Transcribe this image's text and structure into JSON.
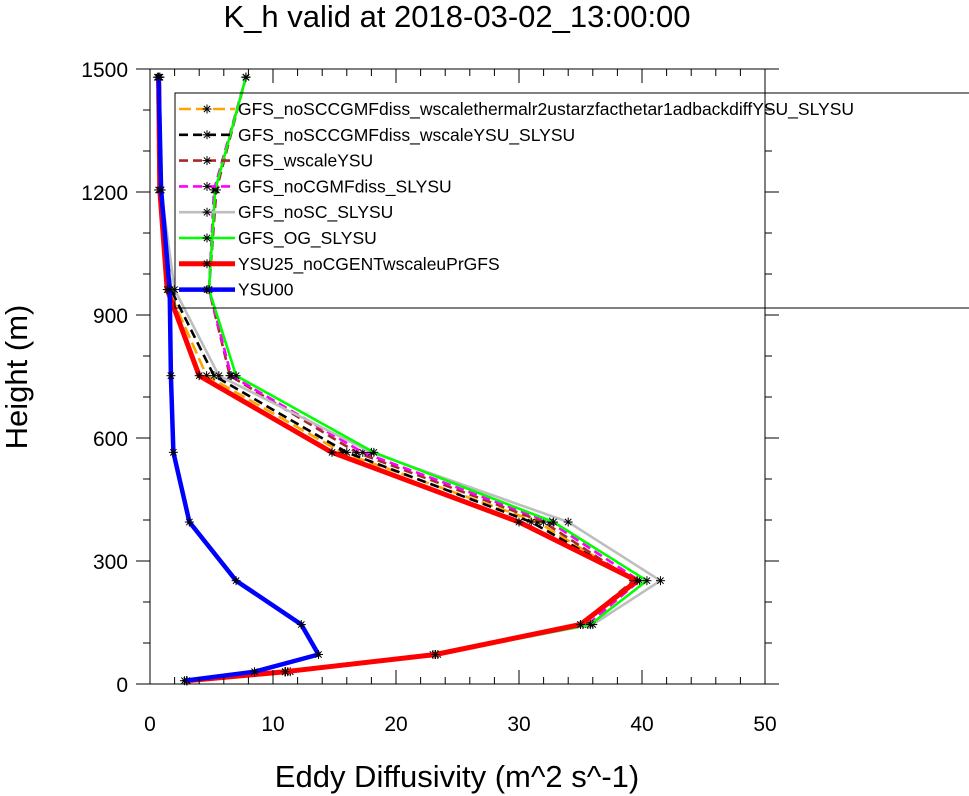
{
  "chart_data": {
    "type": "line",
    "title": "K_h valid at 2018-03-02_13:00:00",
    "xlabel": "Eddy Diffusivity (m^2 s^-1)",
    "ylabel": "Height (m)",
    "xlim": [
      0,
      50
    ],
    "ylim": [
      0,
      1500
    ],
    "xticks": [
      0,
      10,
      20,
      30,
      40,
      50
    ],
    "yticks": [
      0,
      300,
      600,
      900,
      1200,
      1500
    ],
    "legend_position": "top-right",
    "marker": "asterisk",
    "series": [
      {
        "name": "GFS_noSCCGMFdiss_wscalethermalr2ustarzfacthetar1adbackdiffYSU_SLYSU",
        "color": "#FFA500",
        "dash": "long-dash",
        "points": [
          [
            3.0,
            8
          ],
          [
            11.2,
            30
          ],
          [
            23.0,
            72
          ],
          [
            35.2,
            145
          ],
          [
            39.4,
            252
          ],
          [
            31.5,
            395
          ],
          [
            15.6,
            565
          ],
          [
            4.6,
            752
          ],
          [
            1.5,
            962
          ],
          [
            0.7,
            1205
          ],
          [
            0.6,
            1480
          ]
        ]
      },
      {
        "name": "GFS_noSCCGMFdiss_wscaleYSU_SLYSU",
        "color": "#000000",
        "dash": "dash",
        "points": [
          [
            3.0,
            8
          ],
          [
            11.4,
            30
          ],
          [
            23.4,
            72
          ],
          [
            35.2,
            145
          ],
          [
            39.4,
            252
          ],
          [
            31.0,
            395
          ],
          [
            16.0,
            565
          ],
          [
            5.2,
            752
          ],
          [
            1.7,
            962
          ],
          [
            0.9,
            1205
          ],
          [
            0.8,
            1480
          ]
        ]
      },
      {
        "name": "GFS_wscaleYSU",
        "color": "#A52A2A",
        "dash": "dash",
        "points": [
          [
            3.0,
            8
          ],
          [
            11.0,
            30
          ],
          [
            23.2,
            72
          ],
          [
            35.0,
            145
          ],
          [
            39.3,
            252
          ],
          [
            32.0,
            395
          ],
          [
            16.8,
            565
          ],
          [
            6.5,
            752
          ],
          [
            4.8,
            962
          ],
          [
            5.4,
            1205
          ],
          [
            7.8,
            1480
          ]
        ]
      },
      {
        "name": "GFS_noCGMFdiss_SLYSU",
        "color": "#FF00FF",
        "dash": "dash",
        "points": [
          [
            3.0,
            8
          ],
          [
            11.0,
            30
          ],
          [
            23.2,
            72
          ],
          [
            35.6,
            145
          ],
          [
            39.8,
            252
          ],
          [
            32.5,
            395
          ],
          [
            17.3,
            565
          ],
          [
            6.6,
            752
          ],
          [
            4.8,
            962
          ],
          [
            5.2,
            1205
          ],
          [
            7.8,
            1480
          ]
        ]
      },
      {
        "name": "GFS_noSC_SLYSU",
        "color": "#BEBEBE",
        "dash": "solid",
        "points": [
          [
            3.0,
            8
          ],
          [
            11.0,
            30
          ],
          [
            23.2,
            72
          ],
          [
            36.0,
            145
          ],
          [
            41.5,
            252
          ],
          [
            34.0,
            395
          ],
          [
            18.0,
            565
          ],
          [
            5.6,
            752
          ],
          [
            2.0,
            962
          ],
          [
            0.9,
            1205
          ],
          [
            0.8,
            1480
          ]
        ]
      },
      {
        "name": "GFS_OG_SLYSU",
        "color": "#00FF00",
        "dash": "solid",
        "points": [
          [
            3.0,
            8
          ],
          [
            11.0,
            30
          ],
          [
            23.2,
            72
          ],
          [
            35.8,
            145
          ],
          [
            40.4,
            252
          ],
          [
            32.8,
            395
          ],
          [
            18.2,
            565
          ],
          [
            7.0,
            752
          ],
          [
            4.8,
            962
          ],
          [
            5.3,
            1205
          ],
          [
            7.8,
            1480
          ]
        ]
      },
      {
        "name": "YSU25_noCGENTwscaleuPrGFS",
        "color": "#FF0000",
        "dash": "solid",
        "points": [
          [
            3.0,
            8
          ],
          [
            11.0,
            30
          ],
          [
            23.2,
            72
          ],
          [
            35.0,
            145
          ],
          [
            39.6,
            252
          ],
          [
            30.0,
            395
          ],
          [
            14.8,
            565
          ],
          [
            4.0,
            752
          ],
          [
            1.4,
            962
          ],
          [
            0.8,
            1205
          ],
          [
            0.7,
            1480
          ]
        ]
      },
      {
        "name": "YSU00",
        "color": "#0000FF",
        "dash": "solid",
        "points": [
          [
            2.8,
            8
          ],
          [
            8.5,
            30
          ],
          [
            13.7,
            72
          ],
          [
            12.3,
            145
          ],
          [
            7.0,
            252
          ],
          [
            3.2,
            395
          ],
          [
            1.9,
            565
          ],
          [
            1.7,
            752
          ],
          [
            1.6,
            962
          ],
          [
            0.9,
            1205
          ],
          [
            0.7,
            1480
          ]
        ]
      }
    ]
  }
}
